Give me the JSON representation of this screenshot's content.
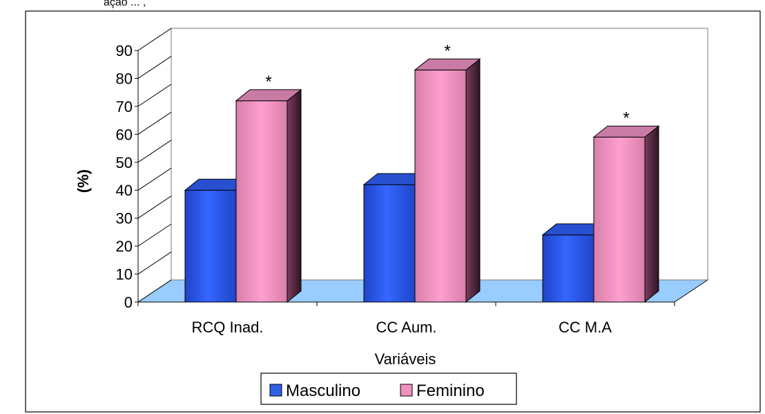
{
  "header_fragment": "ação ... ,",
  "chart_data": {
    "type": "bar",
    "title": "",
    "xlabel": "Variáveis",
    "ylabel": "(%)",
    "ylim": [
      0,
      90
    ],
    "yticks": [
      0,
      10,
      20,
      30,
      40,
      50,
      60,
      70,
      80,
      90
    ],
    "categories": [
      "RCQ Inad.",
      "CC Aum.",
      "CC M.A"
    ],
    "series": [
      {
        "name": "Masculino",
        "values": [
          40,
          42,
          24
        ]
      },
      {
        "name": "Feminino",
        "values": [
          72,
          83,
          59
        ]
      }
    ],
    "annotations": [
      "",
      "*",
      "*",
      "*"
    ],
    "legend": "bottom-center",
    "grid": false,
    "three_d": true,
    "colors": {
      "Masculino": "#2f5fe6",
      "Feminino": "#ee90c0",
      "floor": "#99ccff"
    }
  }
}
